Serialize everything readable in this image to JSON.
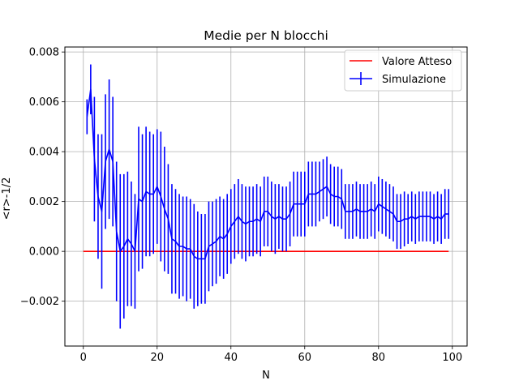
{
  "chart_data": {
    "type": "line",
    "title": "Medie per N blocchi",
    "xlabel": "N",
    "ylabel": "<r>-1/2",
    "xlim": [
      -5,
      104
    ],
    "ylim": [
      -0.0038,
      0.0082
    ],
    "xticks": [
      0,
      20,
      40,
      60,
      80,
      100
    ],
    "xtick_labels": [
      "0",
      "20",
      "40",
      "60",
      "80",
      "100"
    ],
    "yticks": [
      -0.002,
      0.0,
      0.002,
      0.004,
      0.006,
      0.008
    ],
    "ytick_labels": [
      "−0.002",
      "0.000",
      "0.002",
      "0.004",
      "0.006",
      "0.008"
    ],
    "grid": true,
    "legend_position": "upper-right",
    "colors": {
      "expected": "#ff0000",
      "simulation": "#0000ff",
      "grid": "#b0b0b0"
    },
    "series": [
      {
        "name": "Valore Atteso",
        "style": "line",
        "x": [
          0,
          99
        ],
        "y": [
          0.0,
          0.0
        ]
      },
      {
        "name": "Simulazione",
        "style": "errorbar",
        "x": [
          1,
          2,
          3,
          4,
          5,
          6,
          7,
          8,
          9,
          10,
          11,
          12,
          13,
          14,
          15,
          16,
          17,
          18,
          19,
          20,
          21,
          22,
          23,
          24,
          25,
          26,
          27,
          28,
          29,
          30,
          31,
          32,
          33,
          34,
          35,
          36,
          37,
          38,
          39,
          40,
          41,
          42,
          43,
          44,
          45,
          46,
          47,
          48,
          49,
          50,
          51,
          52,
          53,
          54,
          55,
          56,
          57,
          58,
          59,
          60,
          61,
          62,
          63,
          64,
          65,
          66,
          67,
          68,
          69,
          70,
          71,
          72,
          73,
          74,
          75,
          76,
          77,
          78,
          79,
          80,
          81,
          82,
          83,
          84,
          85,
          86,
          87,
          88,
          89,
          90,
          91,
          92,
          93,
          94,
          95,
          96,
          97,
          98,
          99
        ],
        "y": [
          0.0054,
          0.0065,
          0.0037,
          0.0022,
          0.0016,
          0.0036,
          0.0041,
          0.0036,
          0.0008,
          0.0,
          0.0002,
          0.0005,
          0.0003,
          0.0,
          0.0021,
          0.002,
          0.0024,
          0.0023,
          0.0023,
          0.0026,
          0.0022,
          0.0017,
          0.0013,
          0.0005,
          0.0004,
          0.0002,
          0.0002,
          0.0001,
          0.0001,
          -0.0002,
          -0.0003,
          -0.0003,
          -0.0003,
          0.0002,
          0.0003,
          0.0004,
          0.0006,
          0.0005,
          0.0007,
          0.001,
          0.0012,
          0.0014,
          0.0012,
          0.0011,
          0.0012,
          0.0012,
          0.0013,
          0.0012,
          0.0016,
          0.0016,
          0.0014,
          0.0013,
          0.0014,
          0.0013,
          0.0013,
          0.0015,
          0.0019,
          0.0019,
          0.0019,
          0.0019,
          0.0023,
          0.0023,
          0.0023,
          0.0024,
          0.0025,
          0.0026,
          0.0023,
          0.0022,
          0.0022,
          0.0021,
          0.0016,
          0.0016,
          0.0016,
          0.0017,
          0.0016,
          0.0016,
          0.0016,
          0.0017,
          0.0016,
          0.0019,
          0.0018,
          0.0017,
          0.0016,
          0.0015,
          0.0012,
          0.0012,
          0.0013,
          0.0013,
          0.0014,
          0.0013,
          0.0014,
          0.0014,
          0.0014,
          0.0014,
          0.0013,
          0.0014,
          0.0013,
          0.0015,
          0.0015
        ],
        "yerr": [
          0.0007,
          0.001,
          0.0025,
          0.0025,
          0.0031,
          0.0027,
          0.0028,
          0.0026,
          0.0028,
          0.0031,
          0.0029,
          0.0027,
          0.0025,
          0.0023,
          0.0029,
          0.0027,
          0.0026,
          0.0025,
          0.0024,
          0.0023,
          0.0026,
          0.0025,
          0.0022,
          0.0022,
          0.0021,
          0.0021,
          0.002,
          0.0021,
          0.002,
          0.0021,
          0.0019,
          0.0018,
          0.0018,
          0.0018,
          0.0017,
          0.0017,
          0.0016,
          0.0016,
          0.0016,
          0.0015,
          0.0015,
          0.0015,
          0.0015,
          0.0015,
          0.0014,
          0.0014,
          0.0014,
          0.0014,
          0.0014,
          0.0014,
          0.0014,
          0.0014,
          0.0013,
          0.0013,
          0.0013,
          0.0013,
          0.0013,
          0.0013,
          0.0013,
          0.0013,
          0.0013,
          0.0013,
          0.0013,
          0.0012,
          0.0012,
          0.0012,
          0.0012,
          0.0012,
          0.0012,
          0.0012,
          0.0011,
          0.0011,
          0.0011,
          0.0011,
          0.0011,
          0.0011,
          0.0011,
          0.0011,
          0.0011,
          0.0011,
          0.0011,
          0.0011,
          0.0011,
          0.0011,
          0.0011,
          0.0011,
          0.0011,
          0.001,
          0.001,
          0.001,
          0.001,
          0.001,
          0.001,
          0.001,
          0.001,
          0.001,
          0.001,
          0.001,
          0.001
        ]
      }
    ]
  }
}
